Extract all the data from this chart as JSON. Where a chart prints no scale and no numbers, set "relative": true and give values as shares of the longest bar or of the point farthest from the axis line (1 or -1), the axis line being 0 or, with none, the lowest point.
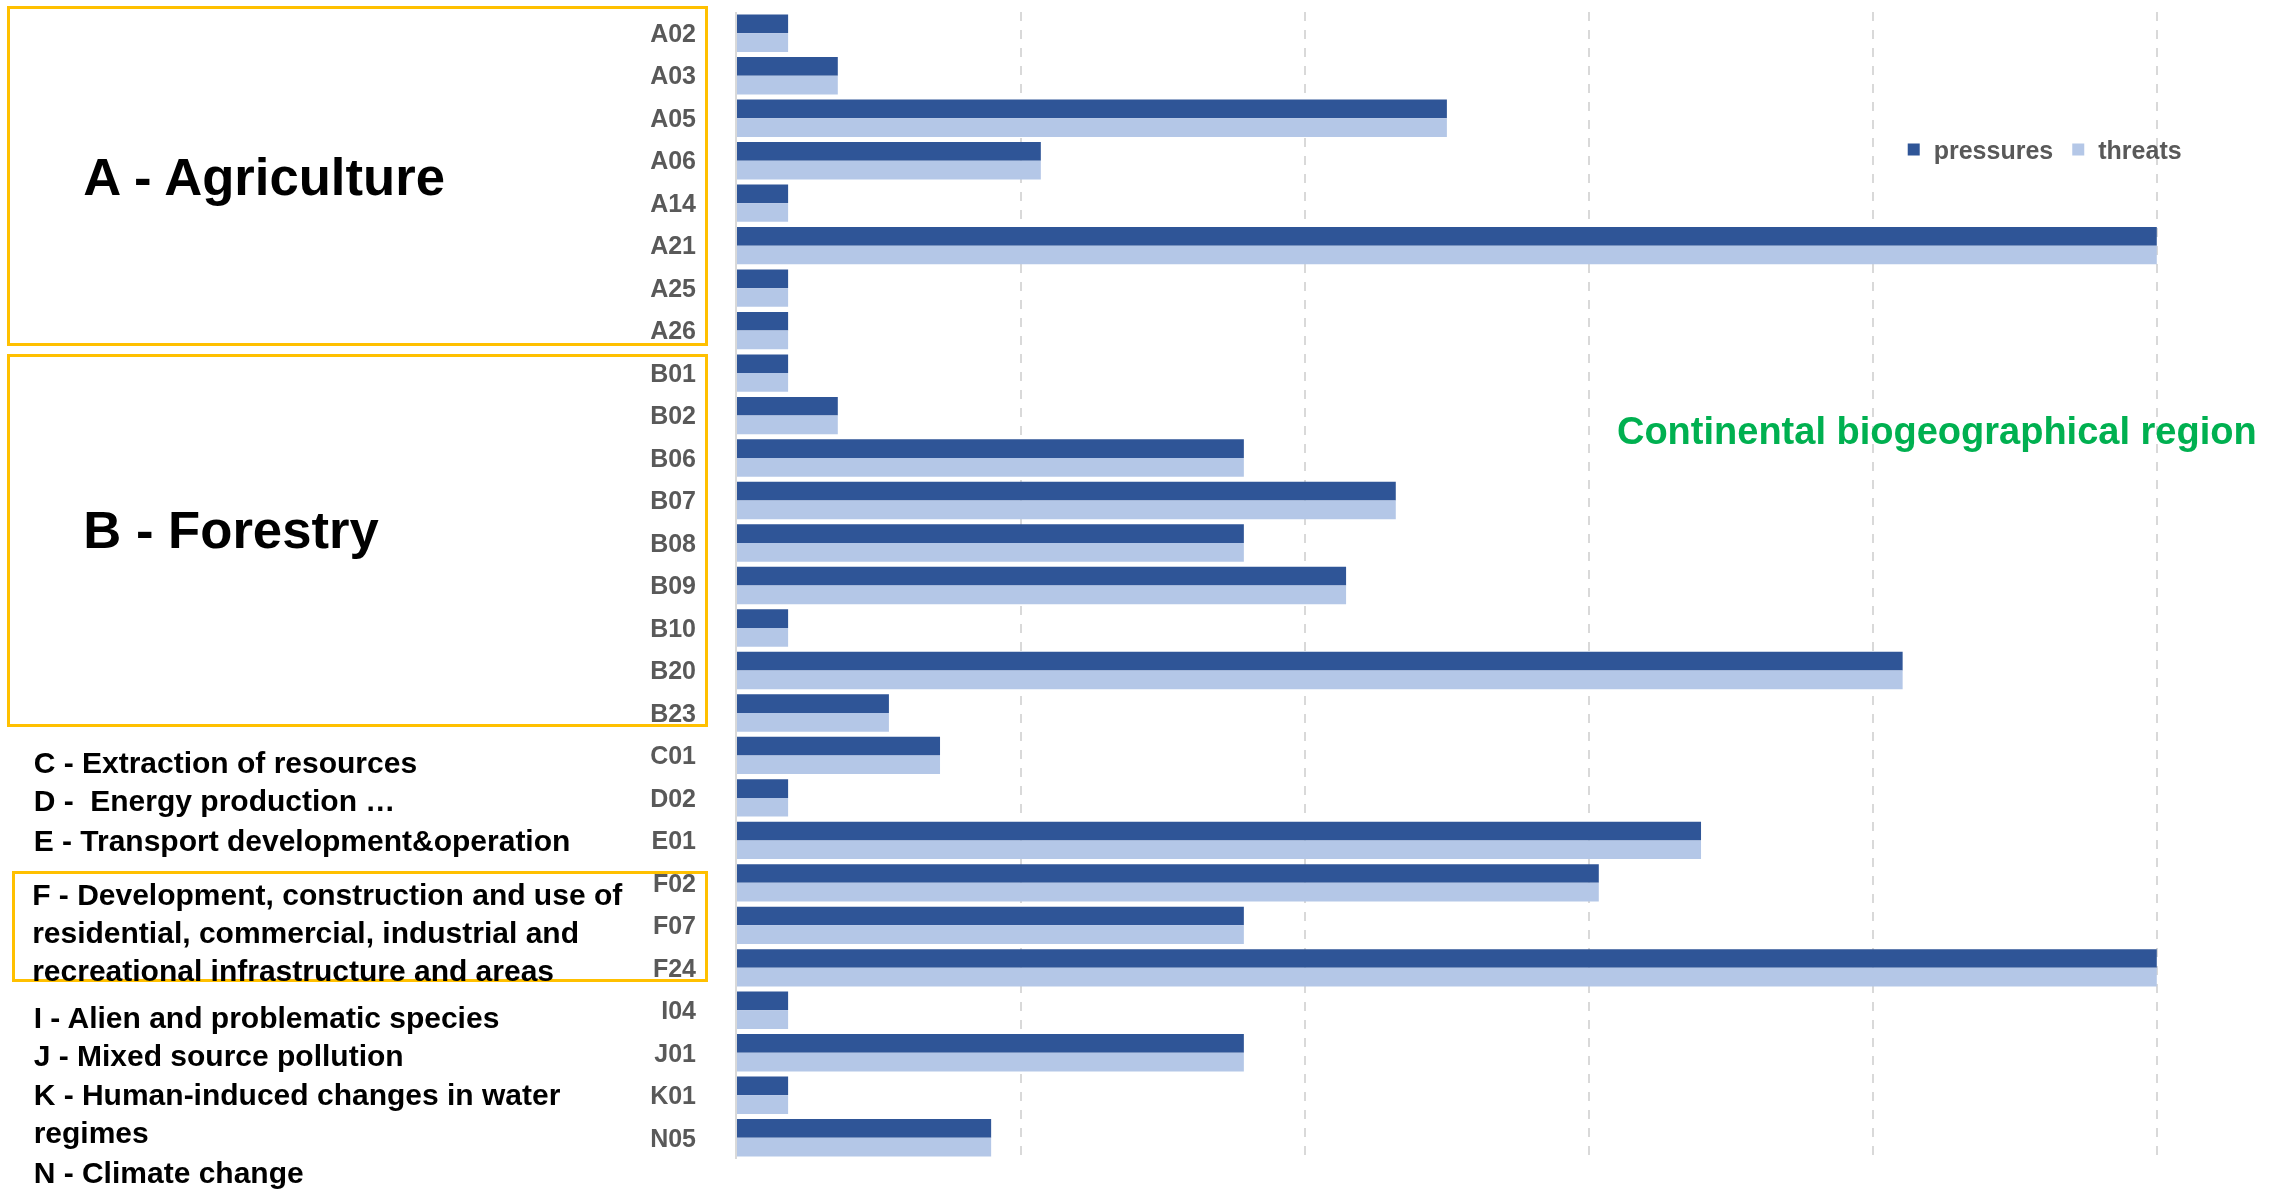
{
  "chart_data": {
    "type": "bar",
    "orientation": "horizontal",
    "relative": true,
    "grid": "x",
    "legend": "top right",
    "categories": [
      "A02",
      "A03",
      "A05",
      "A06",
      "A14",
      "A21",
      "A25",
      "A26",
      "B01",
      "B02",
      "B06",
      "B07",
      "B08",
      "B09",
      "B10",
      "B20",
      "B23",
      "C01",
      "D02",
      "E01",
      "F02",
      "F07",
      "F24",
      "I04",
      "J01",
      "K01",
      "N05"
    ],
    "series": [
      {
        "name": "pressures",
        "color": "#2f5597",
        "values": [
          0.036,
          0.071,
          0.5,
          0.214,
          0.036,
          1,
          0.036,
          0.036,
          0.036,
          0.071,
          0.357,
          0.464,
          0.357,
          0.429,
          0.036,
          0.821,
          0.107,
          0.143,
          0.036,
          0.679,
          0.607,
          0.357,
          1,
          0.036,
          0.357,
          0.036,
          0.179
        ]
      },
      {
        "name": "threats",
        "color": "#b4c7e7",
        "values": [
          0.036,
          0.071,
          0.5,
          0.214,
          0.036,
          1,
          0.036,
          0.036,
          0.036,
          0.071,
          0.357,
          0.464,
          0.357,
          0.429,
          0.036,
          0.821,
          0.107,
          0.143,
          0.036,
          0.679,
          0.607,
          0.357,
          1,
          0.036,
          0.357,
          0.036,
          0.179
        ]
      }
    ],
    "annotations": [
      "A - Agriculture",
      "B - Forestry",
      "C - Extraction of resources",
      "D -  Energy production …",
      "E - Transport development&operation",
      "F - Development, construction and use of residential, commercial, industrial and recreational infrastructure and areas",
      "I - Alien and problematic species",
      "J - Mixed source pollution",
      "K - Human-induced changes in water regimes",
      "N - Climate change",
      "Continental biogeographical region"
    ]
  }
}
